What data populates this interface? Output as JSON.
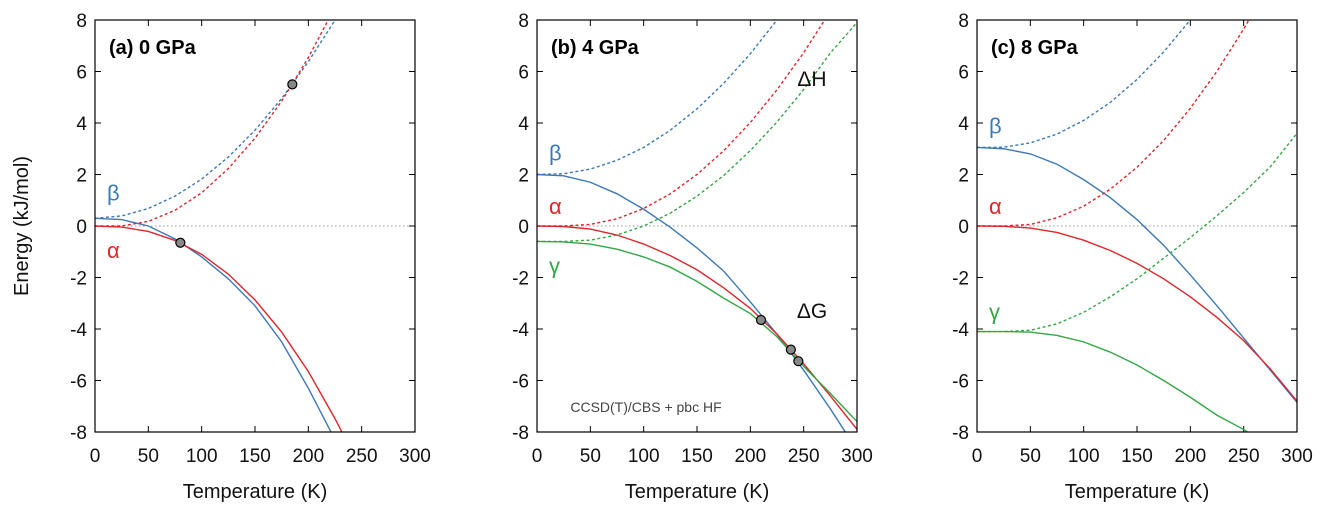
{
  "chart_data": [
    {
      "type": "line",
      "title": "(a) 0 GPa",
      "xlabel": "Temperature (K)",
      "ylabel": "Energy (kJ/mol)",
      "x": [
        0,
        25,
        50,
        75,
        100,
        125,
        150,
        175,
        200,
        225,
        250,
        275,
        300
      ],
      "xlim": [
        0,
        300
      ],
      "ylim": [
        -8,
        8
      ],
      "xticks": [
        0,
        50,
        100,
        150,
        200,
        250,
        300
      ],
      "yticks": [
        -8,
        -6,
        -4,
        -2,
        0,
        2,
        4,
        6,
        8
      ],
      "series": [
        {
          "name": "β",
          "color": "#3b78b9",
          "dH": [
            0.3,
            0.39,
            0.68,
            1.16,
            1.82,
            2.68,
            3.72,
            4.95,
            6.38,
            7.99,
            9.6,
            null,
            null
          ],
          "dG": [
            0.3,
            0.25,
            0,
            -0.5,
            -1.2,
            -2.05,
            -3.1,
            -4.5,
            -6.3,
            -8.3,
            null,
            null,
            null
          ]
        },
        {
          "name": "α",
          "color": "#e0262b",
          "dH": [
            0,
            0,
            0.18,
            0.61,
            1.29,
            2.23,
            3.41,
            4.85,
            6.54,
            8.5,
            null,
            null,
            null
          ],
          "dG": [
            0,
            -0.04,
            -0.21,
            -0.56,
            -1.1,
            -1.87,
            -2.87,
            -4.12,
            -5.65,
            -7.48,
            -9.5,
            null,
            null
          ]
        }
      ],
      "points": {
        "x": [
          80,
          185
        ],
        "y": [
          -0.65,
          5.5
        ]
      },
      "annotations": []
    },
    {
      "type": "line",
      "title": "(b) 4 GPa",
      "xlabel": "Temperature (K)",
      "x": [
        0,
        25,
        50,
        75,
        100,
        125,
        150,
        175,
        200,
        225,
        250,
        275,
        300
      ],
      "xlim": [
        0,
        300
      ],
      "ylim": [
        -8,
        8
      ],
      "xticks": [
        0,
        50,
        100,
        150,
        200,
        250,
        300
      ],
      "yticks": [
        -8,
        -6,
        -4,
        -2,
        0,
        2,
        4,
        6,
        8
      ],
      "series": [
        {
          "name": "β",
          "color": "#3b78b9",
          "dH": [
            2,
            2.03,
            2.21,
            2.55,
            3.05,
            3.72,
            4.55,
            5.54,
            6.69,
            8.0,
            null,
            null,
            null
          ],
          "dG": [
            2,
            1.95,
            1.7,
            1.25,
            0.65,
            -0.05,
            -0.85,
            -1.75,
            -2.95,
            -4.2,
            -5.6,
            -7.1,
            -8.7
          ]
        },
        {
          "name": "α",
          "color": "#e0262b",
          "dH": [
            0,
            0,
            0.06,
            0.28,
            0.68,
            1.25,
            2.0,
            2.92,
            4.02,
            5.29,
            6.73,
            8.34,
            null
          ],
          "dG": [
            0,
            -0.02,
            -0.12,
            -0.35,
            -0.7,
            -1.15,
            -1.7,
            -2.4,
            -3.2,
            -4.2,
            -5.35,
            -6.6,
            -7.9
          ]
        },
        {
          "name": "γ",
          "color": "#33a845",
          "dH": [
            -0.6,
            -0.6,
            -0.55,
            -0.35,
            0,
            0.5,
            1.16,
            1.96,
            2.93,
            4.04,
            5.3,
            6.72,
            7.9
          ],
          "dG": [
            -0.6,
            -0.62,
            -0.7,
            -0.9,
            -1.2,
            -1.6,
            -2.15,
            -2.8,
            -3.4,
            -4.3,
            -5.45,
            -6.5,
            -7.6
          ]
        }
      ],
      "points": {
        "x": [
          210,
          238,
          245
        ],
        "y": [
          -3.65,
          -4.8,
          -5.25
        ]
      },
      "annotations": [
        "ΔH",
        "ΔG",
        "CCSD(T)/CBS + pbc HF"
      ]
    },
    {
      "type": "line",
      "title": "(c) 8 GPa",
      "xlabel": "Temperature (K)",
      "x": [
        0,
        25,
        50,
        75,
        100,
        125,
        150,
        175,
        200,
        225,
        250,
        275,
        300
      ],
      "xlim": [
        0,
        300
      ],
      "ylim": [
        -8,
        8
      ],
      "xticks": [
        0,
        50,
        100,
        150,
        200,
        250,
        300
      ],
      "yticks": [
        -8,
        -6,
        -4,
        -2,
        0,
        2,
        4,
        6,
        8
      ],
      "series": [
        {
          "name": "β",
          "color": "#3b78b9",
          "dH": [
            3.05,
            3.06,
            3.23,
            3.57,
            4.1,
            4.8,
            5.69,
            6.76,
            8.0,
            null,
            null,
            null,
            null
          ],
          "dG": [
            3.05,
            3.0,
            2.8,
            2.4,
            1.8,
            1.1,
            0.25,
            -0.75,
            -1.9,
            -3.1,
            -4.35,
            -5.6,
            -6.85
          ]
        },
        {
          "name": "α",
          "color": "#e0262b",
          "dH": [
            0,
            0,
            0.06,
            0.32,
            0.77,
            1.43,
            2.28,
            3.32,
            4.57,
            6.01,
            7.65,
            9.45,
            null
          ],
          "dG": [
            0,
            -0.01,
            -0.08,
            -0.25,
            -0.55,
            -0.95,
            -1.45,
            -2.05,
            -2.75,
            -3.55,
            -4.45,
            -5.55,
            -6.8
          ]
        },
        {
          "name": "γ",
          "color": "#33a845",
          "dH": [
            -4.1,
            -4.1,
            -4.05,
            -3.8,
            -3.35,
            -2.75,
            -2.05,
            -1.25,
            -0.45,
            0.4,
            1.3,
            2.3,
            3.6
          ],
          "dG": [
            -4.1,
            -4.1,
            -4.12,
            -4.25,
            -4.5,
            -4.9,
            -5.4,
            -6.0,
            -6.65,
            -7.35,
            -7.9,
            -8.6,
            null
          ]
        }
      ],
      "points": {
        "x": [],
        "y": []
      },
      "annotations": []
    }
  ]
}
